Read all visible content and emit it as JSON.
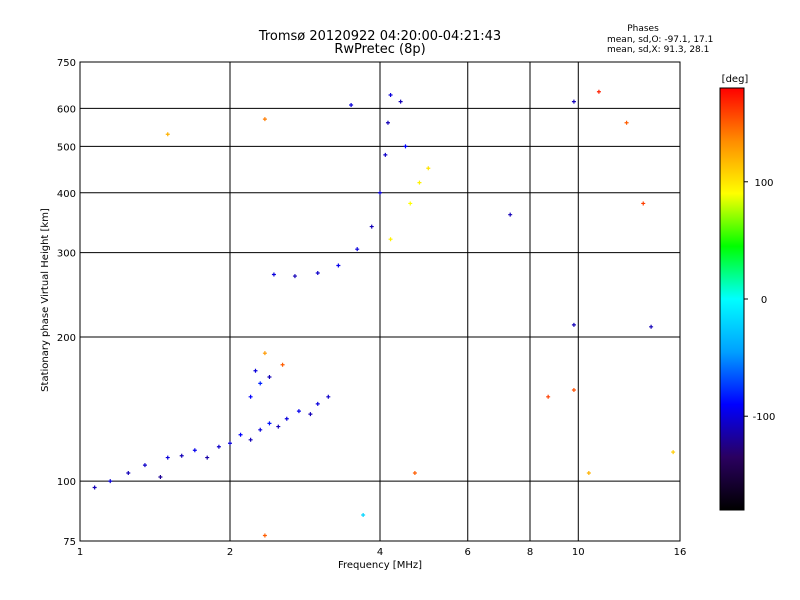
{
  "chart_data": {
    "type": "scatter",
    "title": "Tromsø 20120922 04:20:00-04:21:43",
    "subtitle": "RwPretec (8p)",
    "xlabel": "Frequency [MHz]",
    "ylabel": "Stationary phase Virtual Height [km]",
    "x_scale": "log",
    "y_scale": "log",
    "xlim": [
      1,
      16
    ],
    "ylim": [
      75,
      750
    ],
    "x_ticks": [
      "1",
      "2",
      "4",
      "6",
      "8",
      "10",
      "16"
    ],
    "y_ticks": [
      "75",
      "100",
      "200",
      "300",
      "400",
      "500",
      "600",
      "750"
    ],
    "grid": true,
    "phase_stats": {
      "title": "Phases",
      "o_line": "mean, sd,O: -97.1, 17.1",
      "x_line": "mean, sd,X:  91.3, 28.1"
    },
    "colorbar": {
      "label": "[deg]",
      "ticks": [
        "100",
        "0",
        "-100"
      ],
      "range": [
        -180,
        180
      ],
      "colors": [
        "#000000",
        "#2a0060",
        "#0000ff",
        "#00a0ff",
        "#00ffff",
        "#00ff00",
        "#ffff00",
        "#ff8c00",
        "#ff0000"
      ]
    },
    "series": [
      {
        "values": [
          {
            "x": 1.07,
            "y": 97,
            "phase": -110
          },
          {
            "x": 1.15,
            "y": 100,
            "phase": -100
          },
          {
            "x": 1.25,
            "y": 104,
            "phase": -110
          },
          {
            "x": 1.35,
            "y": 108,
            "phase": -105
          },
          {
            "x": 1.45,
            "y": 102,
            "phase": -120
          },
          {
            "x": 1.5,
            "y": 112,
            "phase": -100
          },
          {
            "x": 1.6,
            "y": 113,
            "phase": -110
          },
          {
            "x": 1.7,
            "y": 116,
            "phase": -95
          },
          {
            "x": 1.8,
            "y": 112,
            "phase": -115
          },
          {
            "x": 1.9,
            "y": 118,
            "phase": -105
          },
          {
            "x": 2.0,
            "y": 120,
            "phase": -100
          },
          {
            "x": 2.1,
            "y": 125,
            "phase": -90
          },
          {
            "x": 2.2,
            "y": 122,
            "phase": -110
          },
          {
            "x": 2.3,
            "y": 128,
            "phase": -100
          },
          {
            "x": 2.4,
            "y": 132,
            "phase": -85
          },
          {
            "x": 2.5,
            "y": 130,
            "phase": -110
          },
          {
            "x": 2.6,
            "y": 135,
            "phase": -100
          },
          {
            "x": 2.75,
            "y": 140,
            "phase": -95
          },
          {
            "x": 2.9,
            "y": 138,
            "phase": -110
          },
          {
            "x": 3.0,
            "y": 145,
            "phase": -100
          },
          {
            "x": 3.15,
            "y": 150,
            "phase": -105
          },
          {
            "x": 2.2,
            "y": 150,
            "phase": -90
          },
          {
            "x": 2.3,
            "y": 160,
            "phase": -80
          },
          {
            "x": 2.25,
            "y": 170,
            "phase": -100
          },
          {
            "x": 2.4,
            "y": 165,
            "phase": -110
          },
          {
            "x": 2.35,
            "y": 185,
            "phase": 130
          },
          {
            "x": 2.55,
            "y": 175,
            "phase": 150
          },
          {
            "x": 2.45,
            "y": 270,
            "phase": -100
          },
          {
            "x": 2.7,
            "y": 268,
            "phase": -110
          },
          {
            "x": 3.0,
            "y": 272,
            "phase": -105
          },
          {
            "x": 3.3,
            "y": 282,
            "phase": -95
          },
          {
            "x": 3.6,
            "y": 305,
            "phase": -100
          },
          {
            "x": 3.85,
            "y": 340,
            "phase": -110
          },
          {
            "x": 4.0,
            "y": 400,
            "phase": -100
          },
          {
            "x": 4.1,
            "y": 480,
            "phase": -105
          },
          {
            "x": 4.15,
            "y": 560,
            "phase": -110
          },
          {
            "x": 4.2,
            "y": 640,
            "phase": -100
          },
          {
            "x": 4.4,
            "y": 620,
            "phase": -110
          },
          {
            "x": 4.5,
            "y": 500,
            "phase": -90
          },
          {
            "x": 4.6,
            "y": 380,
            "phase": 90
          },
          {
            "x": 4.8,
            "y": 420,
            "phase": 95
          },
          {
            "x": 5.0,
            "y": 450,
            "phase": 100
          },
          {
            "x": 4.2,
            "y": 320,
            "phase": 95
          },
          {
            "x": 1.5,
            "y": 530,
            "phase": 120
          },
          {
            "x": 2.35,
            "y": 570,
            "phase": 140
          },
          {
            "x": 3.5,
            "y": 610,
            "phase": -100
          },
          {
            "x": 7.3,
            "y": 360,
            "phase": -110
          },
          {
            "x": 9.8,
            "y": 620,
            "phase": -110
          },
          {
            "x": 11.0,
            "y": 650,
            "phase": 170
          },
          {
            "x": 12.5,
            "y": 560,
            "phase": 150
          },
          {
            "x": 13.5,
            "y": 380,
            "phase": 160
          },
          {
            "x": 9.8,
            "y": 212,
            "phase": -110
          },
          {
            "x": 14.0,
            "y": 210,
            "phase": -110
          },
          {
            "x": 8.7,
            "y": 150,
            "phase": 160
          },
          {
            "x": 9.8,
            "y": 155,
            "phase": 155
          },
          {
            "x": 15.5,
            "y": 115,
            "phase": 110
          },
          {
            "x": 10.5,
            "y": 104,
            "phase": 120
          },
          {
            "x": 4.7,
            "y": 104,
            "phase": 150
          },
          {
            "x": 3.7,
            "y": 85,
            "phase": -20
          },
          {
            "x": 2.35,
            "y": 77,
            "phase": 150
          }
        ]
      }
    ]
  }
}
